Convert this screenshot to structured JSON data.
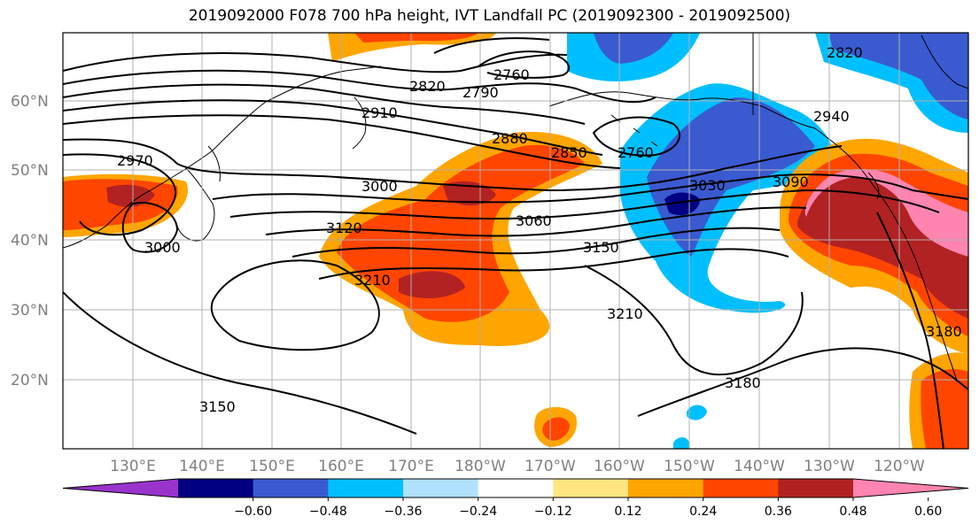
{
  "title": "2019092000 F078 700 hPa height, IVT Landfall PC (2019092300 - 2019092500)",
  "longitude_labels": [
    "130°E",
    "140°E",
    "150°E",
    "160°E",
    "170°E",
    "180°W",
    "170°W",
    "160°W",
    "150°W",
    "140°W",
    "130°W",
    "120°W"
  ],
  "latitude_labels": [
    "60°N",
    "50°N",
    "40°N",
    "30°N",
    "20°N"
  ],
  "contour_labels": [
    "2760",
    "2790",
    "2820",
    "2820",
    "2850",
    "2880",
    "2910",
    "2940",
    "2970",
    "3000",
    "3000",
    "3030",
    "3060",
    "3090",
    "3120",
    "3150",
    "3150",
    "3180",
    "3180",
    "3210",
    "3210",
    "2760"
  ],
  "colorbar": {
    "tick_labels": [
      "−0.60",
      "−0.48",
      "−0.36",
      "−0.24",
      "−0.12",
      "0.12",
      "0.24",
      "0.36",
      "0.48",
      "0.60"
    ],
    "colors": [
      "#9933cc",
      "#000080",
      "#3a5ad0",
      "#00bfff",
      "#b0e2ff",
      "#ffffff",
      "#ffe680",
      "#ffa500",
      "#ff4500",
      "#b22222",
      "#ff85b0"
    ]
  },
  "colors": {
    "background": "#ffffff",
    "grid": "#b0b0b0",
    "contour": "#000000"
  }
}
